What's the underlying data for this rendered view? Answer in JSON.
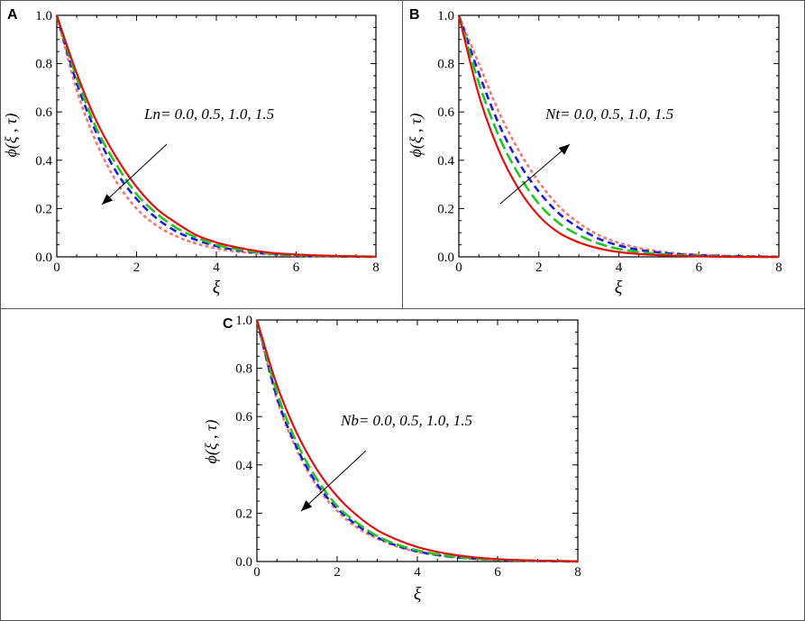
{
  "panels": [
    {
      "letter": "A",
      "ylabel": "ϕ(ξ , τ)",
      "xlabel": "ξ",
      "annotation": "Ln= 0.0, 0.5, 1.0, 1.5"
    },
    {
      "letter": "B",
      "ylabel": "ϕ(ξ , τ)",
      "xlabel": "ξ",
      "annotation": "Nt= 0.0, 0.5, 1.0, 1.5"
    },
    {
      "letter": "C",
      "ylabel": "ϕ(ξ , τ)",
      "xlabel": "ξ",
      "annotation": "Nb= 0.0, 0.5, 1.0, 1.5"
    }
  ],
  "colors": {
    "solid": "#e01010",
    "green": "#22c522",
    "blue": "#1a1ae0",
    "pink": "#f07878",
    "axis": "#000000"
  },
  "chart_data": [
    {
      "panel": "A",
      "type": "line",
      "xlabel": "ξ",
      "ylabel": "ϕ(ξ , τ)",
      "xlim": [
        0,
        8
      ],
      "ylim": [
        0,
        1
      ],
      "xticks": [
        0,
        2,
        4,
        6,
        8
      ],
      "yticks": [
        0.0,
        0.2,
        0.4,
        0.6,
        0.8,
        1.0
      ],
      "ytick_labels": [
        "0.0",
        "0.2",
        "0.4",
        "0.6",
        "0.8",
        "1.0"
      ],
      "annotation": "Ln= 0.0, 0.5, 1.0, 1.5",
      "arrow_direction": "down-left",
      "x": [
        0,
        0.5,
        1,
        1.5,
        2,
        2.5,
        3,
        3.5,
        4,
        4.5,
        5,
        5.5,
        6,
        6.5,
        7,
        7.5,
        8
      ],
      "series": [
        {
          "style": "solid",
          "color": "#e01010",
          "values": [
            1.0,
            0.76,
            0.56,
            0.41,
            0.29,
            0.2,
            0.14,
            0.09,
            0.06,
            0.04,
            0.025,
            0.015,
            0.01,
            0.006,
            0.004,
            0.002,
            0.001
          ]
        },
        {
          "style": "long-dash",
          "color": "#22c522",
          "values": [
            1.0,
            0.74,
            0.53,
            0.38,
            0.26,
            0.18,
            0.12,
            0.08,
            0.05,
            0.032,
            0.02,
            0.012,
            0.008,
            0.005,
            0.003,
            0.002,
            0.001
          ]
        },
        {
          "style": "dash",
          "color": "#1a1ae0",
          "values": [
            1.0,
            0.72,
            0.51,
            0.35,
            0.24,
            0.16,
            0.105,
            0.07,
            0.045,
            0.028,
            0.018,
            0.011,
            0.007,
            0.004,
            0.002,
            0.001,
            0.0
          ]
        },
        {
          "style": "short-dash",
          "color": "#f07878",
          "values": [
            1.0,
            0.69,
            0.47,
            0.31,
            0.2,
            0.13,
            0.085,
            0.055,
            0.035,
            0.022,
            0.014,
            0.009,
            0.005,
            0.003,
            0.002,
            0.001,
            0.0
          ]
        }
      ]
    },
    {
      "panel": "B",
      "type": "line",
      "xlabel": "ξ",
      "ylabel": "ϕ(ξ , τ)",
      "xlim": [
        0,
        8
      ],
      "ylim": [
        0,
        1
      ],
      "xticks": [
        0,
        2,
        4,
        6,
        8
      ],
      "yticks": [
        0.0,
        0.2,
        0.4,
        0.6,
        0.8,
        1.0
      ],
      "ytick_labels": [
        "0.0",
        "0.2",
        "0.4",
        "0.6",
        "0.8",
        "1.0"
      ],
      "annotation": "Nt= 0.0, 0.5, 1.0, 1.5",
      "arrow_direction": "up-right",
      "x": [
        0,
        0.5,
        1,
        1.5,
        2,
        2.5,
        3,
        3.5,
        4,
        4.5,
        5,
        5.5,
        6,
        6.5,
        7,
        7.5,
        8
      ],
      "series": [
        {
          "style": "solid",
          "color": "#e01010",
          "values": [
            1.0,
            0.67,
            0.44,
            0.28,
            0.17,
            0.1,
            0.06,
            0.035,
            0.02,
            0.012,
            0.007,
            0.004,
            0.002,
            0.001,
            0.0,
            0.0,
            0.0
          ]
        },
        {
          "style": "long-dash",
          "color": "#22c522",
          "values": [
            1.0,
            0.72,
            0.5,
            0.34,
            0.22,
            0.14,
            0.09,
            0.055,
            0.033,
            0.02,
            0.012,
            0.007,
            0.004,
            0.002,
            0.001,
            0.0,
            0.0
          ]
        },
        {
          "style": "dash",
          "color": "#1a1ae0",
          "values": [
            1.0,
            0.76,
            0.55,
            0.39,
            0.27,
            0.18,
            0.12,
            0.075,
            0.047,
            0.029,
            0.018,
            0.011,
            0.007,
            0.004,
            0.002,
            0.001,
            0.0
          ]
        },
        {
          "style": "short-dash",
          "color": "#f07878",
          "values": [
            1.0,
            0.8,
            0.6,
            0.44,
            0.31,
            0.21,
            0.14,
            0.09,
            0.058,
            0.037,
            0.023,
            0.014,
            0.009,
            0.005,
            0.003,
            0.002,
            0.001
          ]
        }
      ]
    },
    {
      "panel": "C",
      "type": "line",
      "xlabel": "ξ",
      "ylabel": "ϕ(ξ , τ)",
      "xlim": [
        0,
        8
      ],
      "ylim": [
        0,
        1
      ],
      "xticks": [
        0,
        2,
        4,
        6,
        8
      ],
      "yticks": [
        0.0,
        0.2,
        0.4,
        0.6,
        0.8,
        1.0
      ],
      "ytick_labels": [
        "0.0",
        "0.2",
        "0.4",
        "0.6",
        "0.8",
        "1.0"
      ],
      "annotation": "Nb= 0.0, 0.5, 1.0, 1.5",
      "arrow_direction": "down-left",
      "x": [
        0,
        0.5,
        1,
        1.5,
        2,
        2.5,
        3,
        3.5,
        4,
        4.5,
        5,
        5.5,
        6,
        6.5,
        7,
        7.5,
        8
      ],
      "series": [
        {
          "style": "solid",
          "color": "#e01010",
          "values": [
            1.0,
            0.73,
            0.53,
            0.38,
            0.27,
            0.19,
            0.13,
            0.09,
            0.06,
            0.04,
            0.026,
            0.016,
            0.01,
            0.006,
            0.004,
            0.002,
            0.001
          ]
        },
        {
          "style": "long-dash",
          "color": "#22c522",
          "values": [
            1.0,
            0.7,
            0.49,
            0.34,
            0.23,
            0.16,
            0.105,
            0.07,
            0.046,
            0.03,
            0.019,
            0.012,
            0.008,
            0.005,
            0.003,
            0.002,
            0.001
          ]
        },
        {
          "style": "dash",
          "color": "#1a1ae0",
          "values": [
            1.0,
            0.68,
            0.47,
            0.32,
            0.22,
            0.15,
            0.1,
            0.065,
            0.042,
            0.027,
            0.017,
            0.011,
            0.007,
            0.004,
            0.002,
            0.001,
            0.0
          ]
        },
        {
          "style": "short-dash",
          "color": "#f07878",
          "values": [
            1.0,
            0.67,
            0.46,
            0.31,
            0.21,
            0.14,
            0.095,
            0.062,
            0.04,
            0.026,
            0.016,
            0.01,
            0.006,
            0.004,
            0.002,
            0.001,
            0.0
          ]
        }
      ]
    }
  ]
}
